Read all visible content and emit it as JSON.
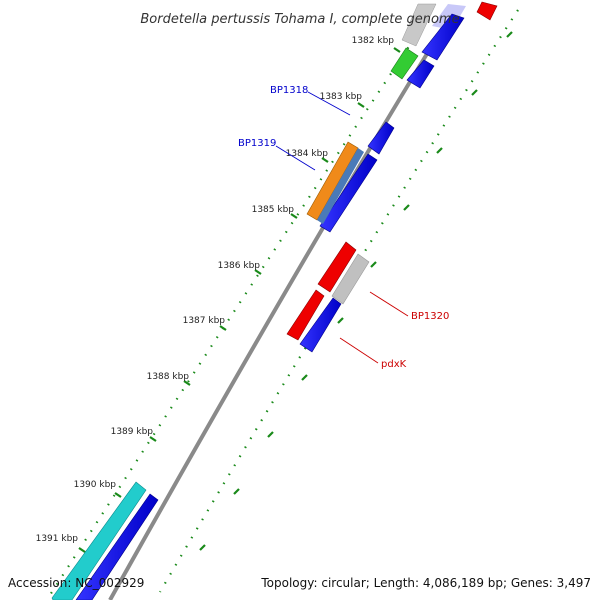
{
  "title": "Bordetella pertussis Tohama I, complete genome",
  "footer": {
    "accession": "Accession: NC_002929",
    "summary": "Topology: circular; Length: 4,086,189 bp; Genes: 3,497"
  },
  "ticks": [
    "1382 kbp",
    "1383 kbp",
    "1384 kbp",
    "1385 kbp",
    "1386 kbp",
    "1387 kbp",
    "1388 kbp",
    "1389 kbp",
    "1390 kbp",
    "1391 kbp"
  ],
  "gene_labels": [
    {
      "id": "bp1318",
      "text": "BP1318",
      "color": "#0000cc"
    },
    {
      "id": "bp1319",
      "text": "BP1319",
      "color": "#0000cc"
    },
    {
      "id": "bp1320",
      "text": "BP1320",
      "color": "#cc0000"
    },
    {
      "id": "pdxk",
      "text": "pdxK",
      "color": "#cc0000"
    }
  ],
  "colors": {
    "backbone": "#8a8a8a",
    "tick_dots": "#1a8a1a",
    "forward_cds": "#0000ee",
    "reverse_cds": "#ee0000",
    "cyan_feature": "#22cccc",
    "orange_feature": "#f08a1a",
    "green_feature": "#33cc33",
    "grey_feature": "#c0c0c0"
  }
}
